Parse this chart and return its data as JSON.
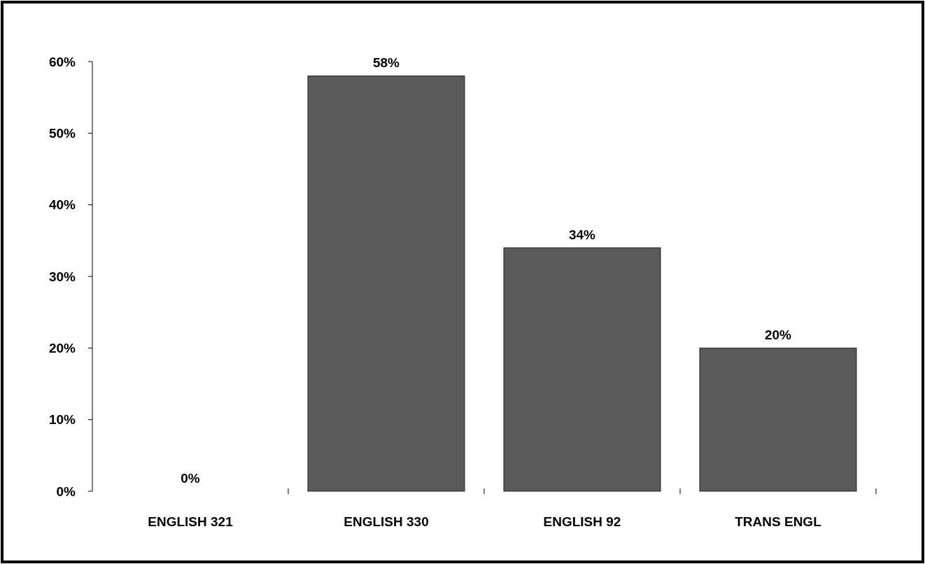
{
  "chart_data": {
    "type": "bar",
    "categories": [
      "ENGLISH 321",
      "ENGLISH 330",
      "ENGLISH 92",
      "TRANS ENGL"
    ],
    "values": [
      0,
      58,
      34,
      20
    ],
    "value_labels": [
      "0%",
      "58%",
      "34%",
      "20%"
    ],
    "color": "#5a5a5a",
    "ylim": [
      0,
      60
    ],
    "yticks": [
      {
        "value": 0,
        "label": "0%"
      },
      {
        "value": 10,
        "label": "10%"
      },
      {
        "value": 20,
        "label": "20%"
      },
      {
        "value": 30,
        "label": "30%"
      },
      {
        "value": 40,
        "label": "40%"
      },
      {
        "value": 50,
        "label": "50%"
      },
      {
        "value": 60,
        "label": "60%"
      }
    ]
  }
}
